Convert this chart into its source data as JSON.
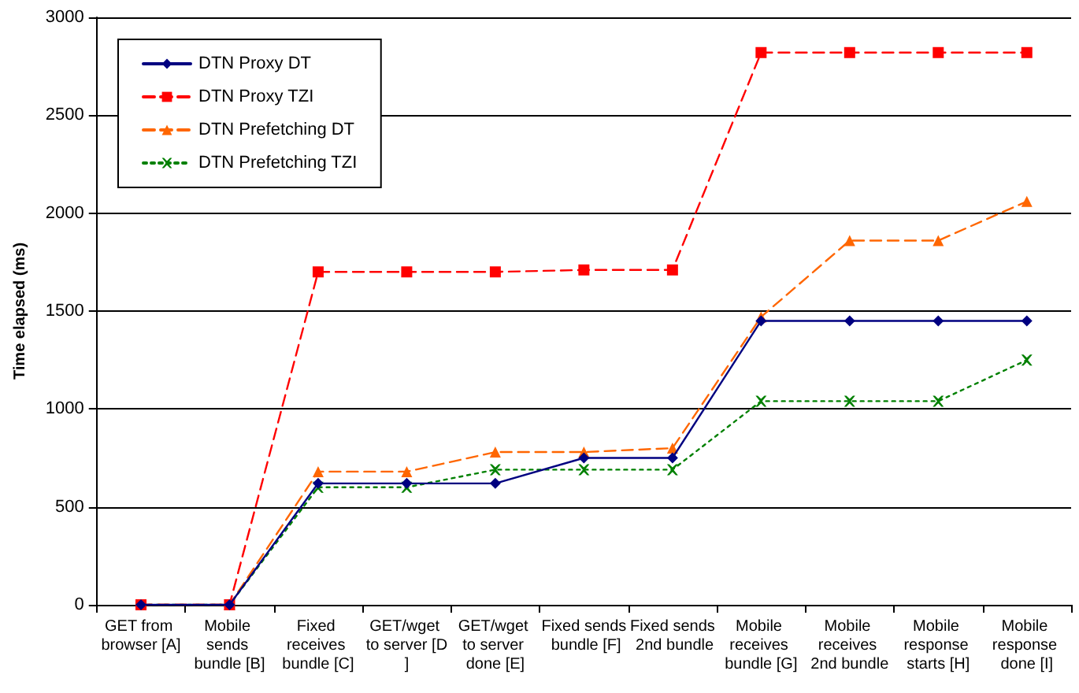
{
  "chart_data": {
    "type": "line",
    "ylabel": "Time elapsed (ms)",
    "categories": [
      "GET from browser [A]",
      "Mobile sends bundle [B]",
      "Fixed receives bundle [C]",
      "GET/wget to server [D]",
      "GET/wget to server done [E]",
      "Fixed sends bundle [F]",
      "Fixed sends 2nd bundle",
      "Mobile receives bundle [G]",
      "Mobile receives 2nd bundle",
      "Mobile response starts [H]",
      "Mobile response done [I]"
    ],
    "series": [
      {
        "name": "DTN Proxy DT",
        "color": "#000080",
        "marker": "diamond",
        "line_style": "solid",
        "values": [
          0,
          0,
          620,
          620,
          620,
          750,
          750,
          1450,
          1450,
          1450,
          1450
        ]
      },
      {
        "name": "DTN Proxy TZI",
        "color": "#ff0000",
        "marker": "square",
        "line_style": "dashed",
        "values": [
          0,
          0,
          1700,
          1700,
          1700,
          1710,
          1710,
          2820,
          2820,
          2820,
          2820
        ]
      },
      {
        "name": "DTN Prefetching DT",
        "color": "#ff6600",
        "marker": "triangle",
        "line_style": "dashed",
        "values": [
          0,
          0,
          680,
          680,
          780,
          780,
          800,
          1470,
          1860,
          1860,
          2060
        ]
      },
      {
        "name": "DTN Prefetching TZI",
        "color": "#008000",
        "marker": "cross",
        "line_style": "dotted",
        "values": [
          0,
          0,
          600,
          600,
          690,
          690,
          690,
          1040,
          1040,
          1040,
          1250
        ]
      }
    ],
    "ylim": [
      0,
      3000
    ],
    "yticks": [
      0,
      500,
      1000,
      1500,
      2000,
      2500,
      3000
    ],
    "grid": "y",
    "legend": "top left"
  }
}
